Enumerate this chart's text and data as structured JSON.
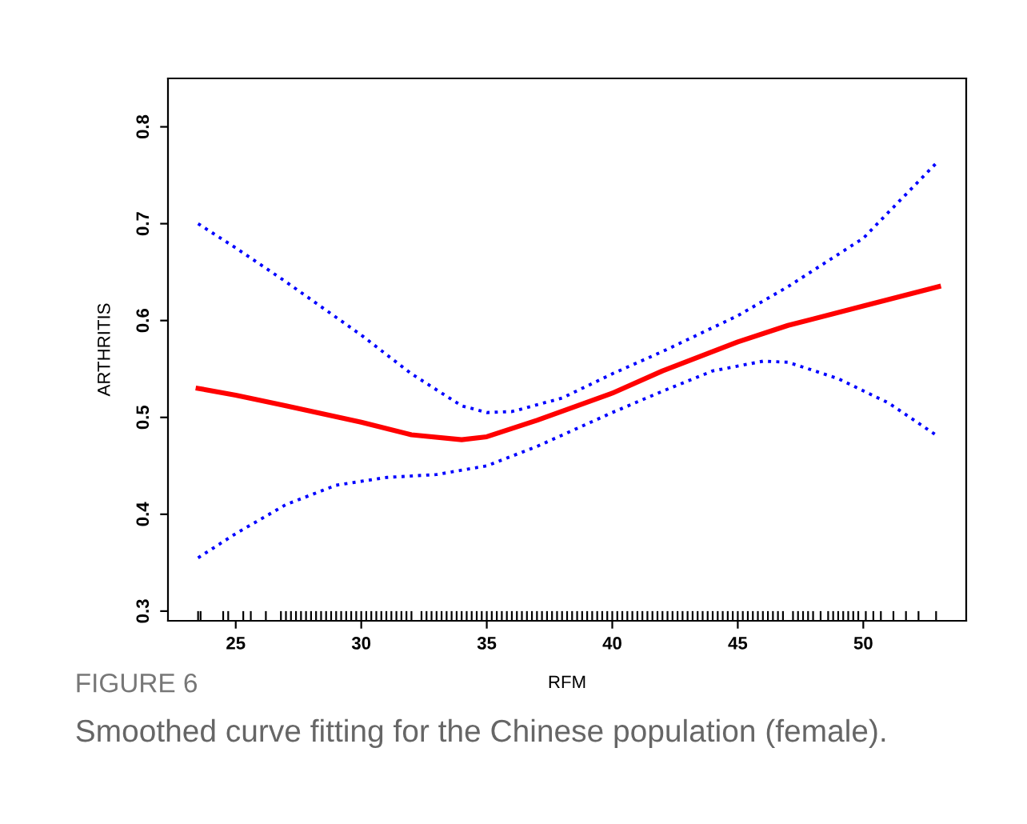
{
  "chart_data": {
    "type": "line",
    "xlabel": "RFM",
    "ylabel": "ARTHRITIS",
    "annotations": [
      "FIGURE 6",
      "Smoothed curve fitting for the Chinese population (female)."
    ],
    "xlim": [
      22.3,
      54.1
    ],
    "ylim": [
      0.29,
      0.85
    ],
    "xticks": [
      25,
      30,
      35,
      40,
      45,
      50
    ],
    "yticks": [
      0.3,
      0.4,
      0.5,
      0.6,
      0.7,
      0.8
    ],
    "grid": false,
    "legend": false,
    "marker": "none",
    "series": [
      {
        "color": "#0000ff",
        "line_style": "dotted",
        "x": [
          23.5,
          25,
          27,
          30,
          32,
          34,
          35,
          36,
          38,
          40,
          42,
          45,
          47,
          50,
          53
        ],
        "values": [
          0.7,
          0.675,
          0.64,
          0.585,
          0.545,
          0.512,
          0.505,
          0.506,
          0.52,
          0.545,
          0.568,
          0.605,
          0.635,
          0.685,
          0.765
        ]
      },
      {
        "color": "#0000ff",
        "line_style": "dotted",
        "x": [
          23.5,
          25,
          27,
          29,
          31,
          33,
          35,
          37,
          40,
          42,
          44,
          46,
          47,
          49,
          51,
          53
        ],
        "values": [
          0.355,
          0.38,
          0.41,
          0.43,
          0.438,
          0.441,
          0.45,
          0.47,
          0.505,
          0.527,
          0.548,
          0.558,
          0.557,
          0.54,
          0.515,
          0.48
        ]
      },
      {
        "color": "#ff0000",
        "line_style": "solid",
        "x": [
          23.5,
          25,
          27,
          30,
          32,
          34,
          35,
          37,
          40,
          42,
          45,
          47,
          50,
          53
        ],
        "values": [
          0.53,
          0.523,
          0.512,
          0.495,
          0.482,
          0.477,
          0.48,
          0.497,
          0.525,
          0.548,
          0.578,
          0.595,
          0.615,
          0.635
        ]
      },
      {
        "type": "bar",
        "color": "#000000",
        "x": [
          23.5,
          23.6,
          24.5,
          24.7,
          25.3,
          25.6,
          26.2,
          26.8,
          27.0,
          27.2,
          27.4,
          27.6,
          27.8,
          28.0,
          28.2,
          28.4,
          28.6,
          28.8,
          29.0,
          29.2,
          29.4,
          29.6,
          29.8,
          30.0,
          30.2,
          30.4,
          30.6,
          30.8,
          31.0,
          31.2,
          31.4,
          31.6,
          31.8,
          32.0,
          32.4,
          32.6,
          32.8,
          33.0,
          33.2,
          33.4,
          33.6,
          33.8,
          34.0,
          34.2,
          34.4,
          34.6,
          34.8,
          35.0,
          35.2,
          35.4,
          35.6,
          35.8,
          36.0,
          36.2,
          36.4,
          36.6,
          36.8,
          37.0,
          37.2,
          37.4,
          37.6,
          37.8,
          38.0,
          38.2,
          38.4,
          38.6,
          38.8,
          39.0,
          39.2,
          39.4,
          39.6,
          39.8,
          40.0,
          40.2,
          40.4,
          40.6,
          40.8,
          41.0,
          41.2,
          41.4,
          41.6,
          41.8,
          42.0,
          42.2,
          42.4,
          42.6,
          42.8,
          43.0,
          43.2,
          43.4,
          43.6,
          43.8,
          44.0,
          44.2,
          44.4,
          44.6,
          44.8,
          45.0,
          45.2,
          45.4,
          45.6,
          45.8,
          46.0,
          46.2,
          46.4,
          46.6,
          46.8,
          47.2,
          47.4,
          47.6,
          47.8,
          48.0,
          48.3,
          48.6,
          48.8,
          49.0,
          49.2,
          49.4,
          49.6,
          49.8,
          50.1,
          50.4,
          50.7,
          51.2,
          51.7,
          52.2,
          52.9
        ],
        "values": [
          0.3,
          0.3,
          0.3,
          0.3,
          0.3,
          0.3,
          0.3,
          0.3,
          0.3,
          0.3,
          0.3,
          0.3,
          0.3,
          0.3,
          0.3,
          0.3,
          0.3,
          0.3,
          0.3,
          0.3,
          0.3,
          0.3,
          0.3,
          0.3,
          0.3,
          0.3,
          0.3,
          0.3,
          0.3,
          0.3,
          0.3,
          0.3,
          0.3,
          0.3,
          0.3,
          0.3,
          0.3,
          0.3,
          0.3,
          0.3,
          0.3,
          0.3,
          0.3,
          0.3,
          0.3,
          0.3,
          0.3,
          0.3,
          0.3,
          0.3,
          0.3,
          0.3,
          0.3,
          0.3,
          0.3,
          0.3,
          0.3,
          0.3,
          0.3,
          0.3,
          0.3,
          0.3,
          0.3,
          0.3,
          0.3,
          0.3,
          0.3,
          0.3,
          0.3,
          0.3,
          0.3,
          0.3,
          0.3,
          0.3,
          0.3,
          0.3,
          0.3,
          0.3,
          0.3,
          0.3,
          0.3,
          0.3,
          0.3,
          0.3,
          0.3,
          0.3,
          0.3,
          0.3,
          0.3,
          0.3,
          0.3,
          0.3,
          0.3,
          0.3,
          0.3,
          0.3,
          0.3,
          0.3,
          0.3,
          0.3,
          0.3,
          0.3,
          0.3,
          0.3,
          0.3,
          0.3,
          0.3,
          0.3,
          0.3,
          0.3,
          0.3,
          0.3,
          0.3,
          0.3,
          0.3,
          0.3,
          0.3,
          0.3,
          0.3,
          0.3,
          0.3,
          0.3,
          0.3,
          0.3,
          0.3,
          0.3,
          0.3
        ]
      }
    ]
  }
}
